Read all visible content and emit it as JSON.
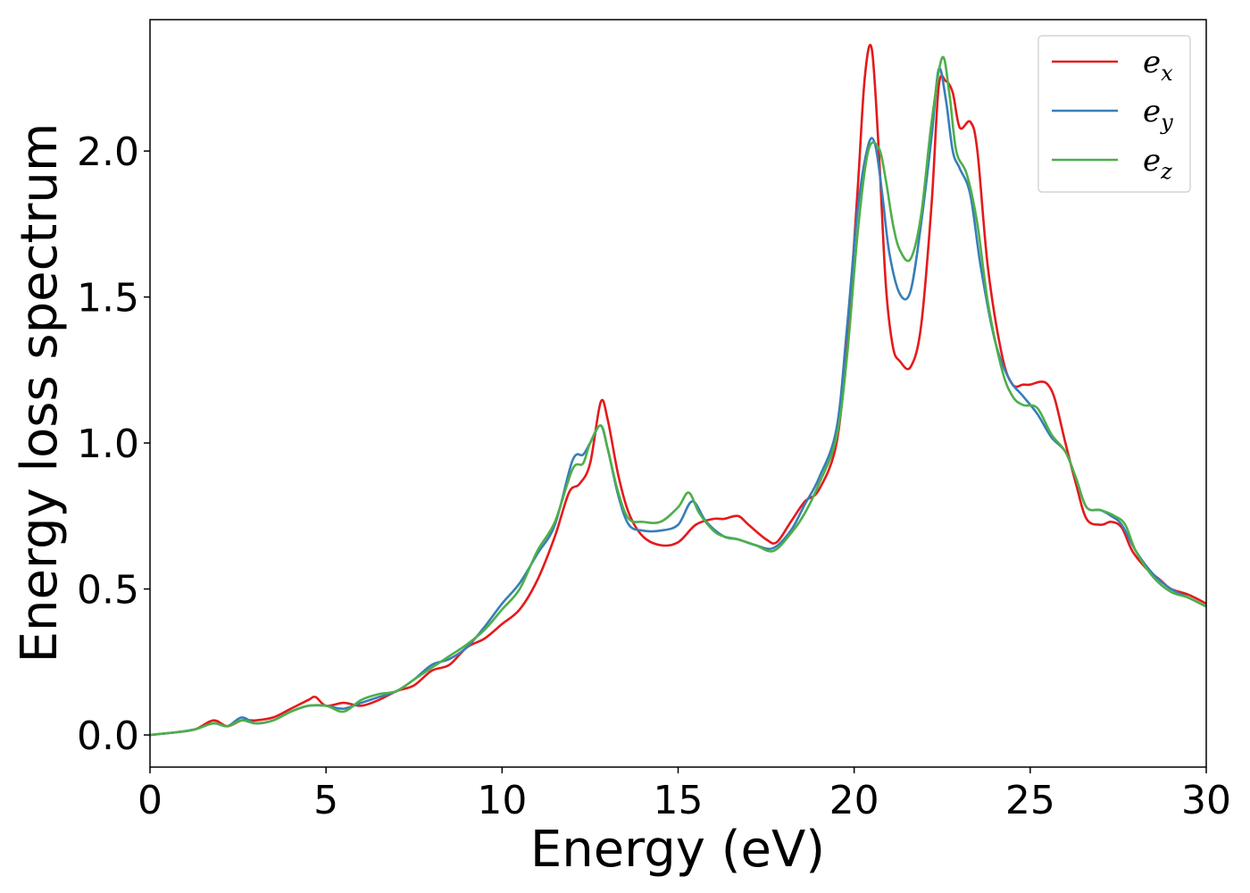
{
  "chart_data": {
    "type": "line",
    "title": "",
    "xlabel": "Energy (eV)",
    "ylabel": "Energy loss spectrum",
    "xlim": [
      0,
      30
    ],
    "ylim": [
      -0.11,
      2.45
    ],
    "xticks": [
      0,
      5,
      10,
      15,
      20,
      25,
      30
    ],
    "xtick_labels": [
      "0",
      "5",
      "10",
      "15",
      "20",
      "25",
      "30"
    ],
    "yticks": [
      0.0,
      0.5,
      1.0,
      1.5,
      2.0
    ],
    "ytick_labels": [
      "0.0",
      "0.5",
      "1.0",
      "1.5",
      "2.0"
    ],
    "grid": false,
    "legend_position": "top-right",
    "series": [
      {
        "name": "e_x",
        "legend_base": "e",
        "legend_sub": "x",
        "color": "#e41a1c",
        "x": [
          0,
          0.8,
          1.3,
          1.8,
          2.2,
          2.6,
          3.0,
          3.5,
          4.0,
          4.5,
          4.7,
          5.0,
          5.5,
          6.0,
          6.5,
          7.0,
          7.5,
          8.0,
          8.5,
          9.0,
          9.5,
          10.0,
          10.5,
          11.0,
          11.5,
          11.9,
          12.2,
          12.5,
          12.8,
          13.0,
          13.3,
          13.6,
          14.0,
          14.5,
          15.0,
          15.5,
          16.0,
          16.3,
          16.7,
          17.0,
          17.5,
          17.8,
          18.2,
          18.6,
          19.0,
          19.5,
          19.8,
          20.1,
          20.3,
          20.5,
          20.7,
          20.9,
          21.1,
          21.3,
          21.6,
          21.9,
          22.2,
          22.4,
          22.6,
          22.8,
          23.0,
          23.3,
          23.5,
          23.8,
          24.2,
          24.5,
          24.8,
          25.0,
          25.3,
          25.5,
          25.7,
          26.0,
          26.3,
          26.6,
          27.0,
          27.3,
          27.6,
          27.9,
          28.3,
          28.7,
          29.0,
          29.5,
          30.0
        ],
        "y": [
          0.0,
          0.01,
          0.02,
          0.05,
          0.03,
          0.05,
          0.05,
          0.06,
          0.09,
          0.12,
          0.13,
          0.1,
          0.11,
          0.1,
          0.12,
          0.15,
          0.17,
          0.22,
          0.24,
          0.3,
          0.33,
          0.38,
          0.43,
          0.53,
          0.68,
          0.83,
          0.86,
          0.93,
          1.14,
          1.08,
          0.89,
          0.76,
          0.68,
          0.65,
          0.66,
          0.72,
          0.74,
          0.74,
          0.75,
          0.72,
          0.67,
          0.66,
          0.73,
          0.8,
          0.84,
          1.0,
          1.35,
          1.87,
          2.25,
          2.35,
          2.0,
          1.54,
          1.33,
          1.28,
          1.26,
          1.4,
          1.82,
          2.22,
          2.24,
          2.2,
          2.08,
          2.1,
          2.0,
          1.6,
          1.3,
          1.2,
          1.2,
          1.2,
          1.21,
          1.2,
          1.15,
          1.0,
          0.86,
          0.74,
          0.72,
          0.73,
          0.71,
          0.63,
          0.57,
          0.53,
          0.5,
          0.48,
          0.45
        ]
      },
      {
        "name": "e_y",
        "legend_base": "e",
        "legend_sub": "y",
        "color": "#377eb8",
        "x": [
          0,
          0.8,
          1.3,
          1.8,
          2.2,
          2.6,
          3.0,
          3.5,
          4.0,
          4.5,
          5.0,
          5.5,
          6.0,
          6.5,
          7.0,
          7.5,
          8.0,
          8.5,
          9.0,
          9.5,
          10.0,
          10.5,
          11.0,
          11.5,
          12.0,
          12.3,
          12.5,
          12.8,
          13.0,
          13.3,
          13.6,
          14.0,
          14.5,
          15.0,
          15.4,
          15.8,
          16.3,
          16.7,
          17.2,
          17.7,
          18.2,
          18.6,
          19.0,
          19.5,
          19.8,
          20.1,
          20.4,
          20.6,
          20.8,
          21.0,
          21.3,
          21.6,
          21.9,
          22.2,
          22.4,
          22.6,
          22.8,
          23.0,
          23.3,
          23.6,
          24.0,
          24.4,
          24.8,
          25.2,
          25.6,
          26.0,
          26.3,
          26.6,
          27.0,
          27.3,
          27.6,
          28.0,
          28.5,
          29.0,
          29.5,
          30.0
        ],
        "y": [
          0.0,
          0.01,
          0.02,
          0.04,
          0.03,
          0.06,
          0.04,
          0.05,
          0.08,
          0.1,
          0.1,
          0.09,
          0.11,
          0.13,
          0.15,
          0.19,
          0.24,
          0.26,
          0.3,
          0.37,
          0.45,
          0.52,
          0.62,
          0.72,
          0.94,
          0.96,
          1.0,
          1.06,
          0.98,
          0.82,
          0.72,
          0.7,
          0.7,
          0.72,
          0.8,
          0.73,
          0.68,
          0.67,
          0.65,
          0.64,
          0.7,
          0.79,
          0.88,
          1.05,
          1.4,
          1.8,
          2.02,
          2.02,
          1.85,
          1.65,
          1.51,
          1.52,
          1.75,
          2.05,
          2.28,
          2.18,
          2.0,
          1.94,
          1.85,
          1.6,
          1.35,
          1.22,
          1.16,
          1.1,
          1.02,
          0.97,
          0.88,
          0.78,
          0.77,
          0.75,
          0.72,
          0.63,
          0.55,
          0.5,
          0.47,
          0.44
        ]
      },
      {
        "name": "e_z",
        "legend_base": "e",
        "legend_sub": "z",
        "color": "#4daf4a",
        "x": [
          0,
          0.8,
          1.3,
          1.8,
          2.2,
          2.6,
          3.0,
          3.5,
          4.0,
          4.5,
          5.0,
          5.5,
          6.0,
          6.5,
          7.0,
          7.5,
          8.0,
          8.5,
          9.0,
          9.5,
          10.0,
          10.5,
          11.0,
          11.5,
          12.0,
          12.3,
          12.5,
          12.8,
          13.0,
          13.3,
          13.6,
          14.0,
          14.5,
          15.0,
          15.3,
          15.6,
          16.0,
          16.3,
          16.7,
          17.2,
          17.7,
          18.2,
          18.6,
          19.0,
          19.5,
          19.8,
          20.1,
          20.4,
          20.7,
          20.9,
          21.1,
          21.3,
          21.6,
          21.9,
          22.2,
          22.5,
          22.7,
          22.9,
          23.2,
          23.5,
          23.8,
          24.2,
          24.5,
          24.8,
          25.2,
          25.6,
          26.0,
          26.3,
          26.6,
          27.0,
          27.4,
          27.7,
          28.0,
          28.5,
          29.0,
          29.5,
          30.0
        ],
        "y": [
          0.0,
          0.01,
          0.02,
          0.04,
          0.03,
          0.05,
          0.04,
          0.05,
          0.08,
          0.1,
          0.1,
          0.08,
          0.12,
          0.14,
          0.15,
          0.19,
          0.23,
          0.27,
          0.31,
          0.36,
          0.43,
          0.5,
          0.63,
          0.73,
          0.91,
          0.93,
          1.0,
          1.06,
          0.98,
          0.83,
          0.74,
          0.73,
          0.73,
          0.78,
          0.83,
          0.76,
          0.7,
          0.68,
          0.67,
          0.65,
          0.63,
          0.69,
          0.76,
          0.86,
          1.02,
          1.3,
          1.72,
          2.0,
          2.01,
          1.9,
          1.75,
          1.66,
          1.63,
          1.78,
          2.1,
          2.32,
          2.2,
          2.0,
          1.92,
          1.75,
          1.48,
          1.25,
          1.16,
          1.13,
          1.12,
          1.03,
          0.97,
          0.88,
          0.78,
          0.77,
          0.75,
          0.72,
          0.63,
          0.54,
          0.49,
          0.47,
          0.44
        ]
      }
    ]
  }
}
